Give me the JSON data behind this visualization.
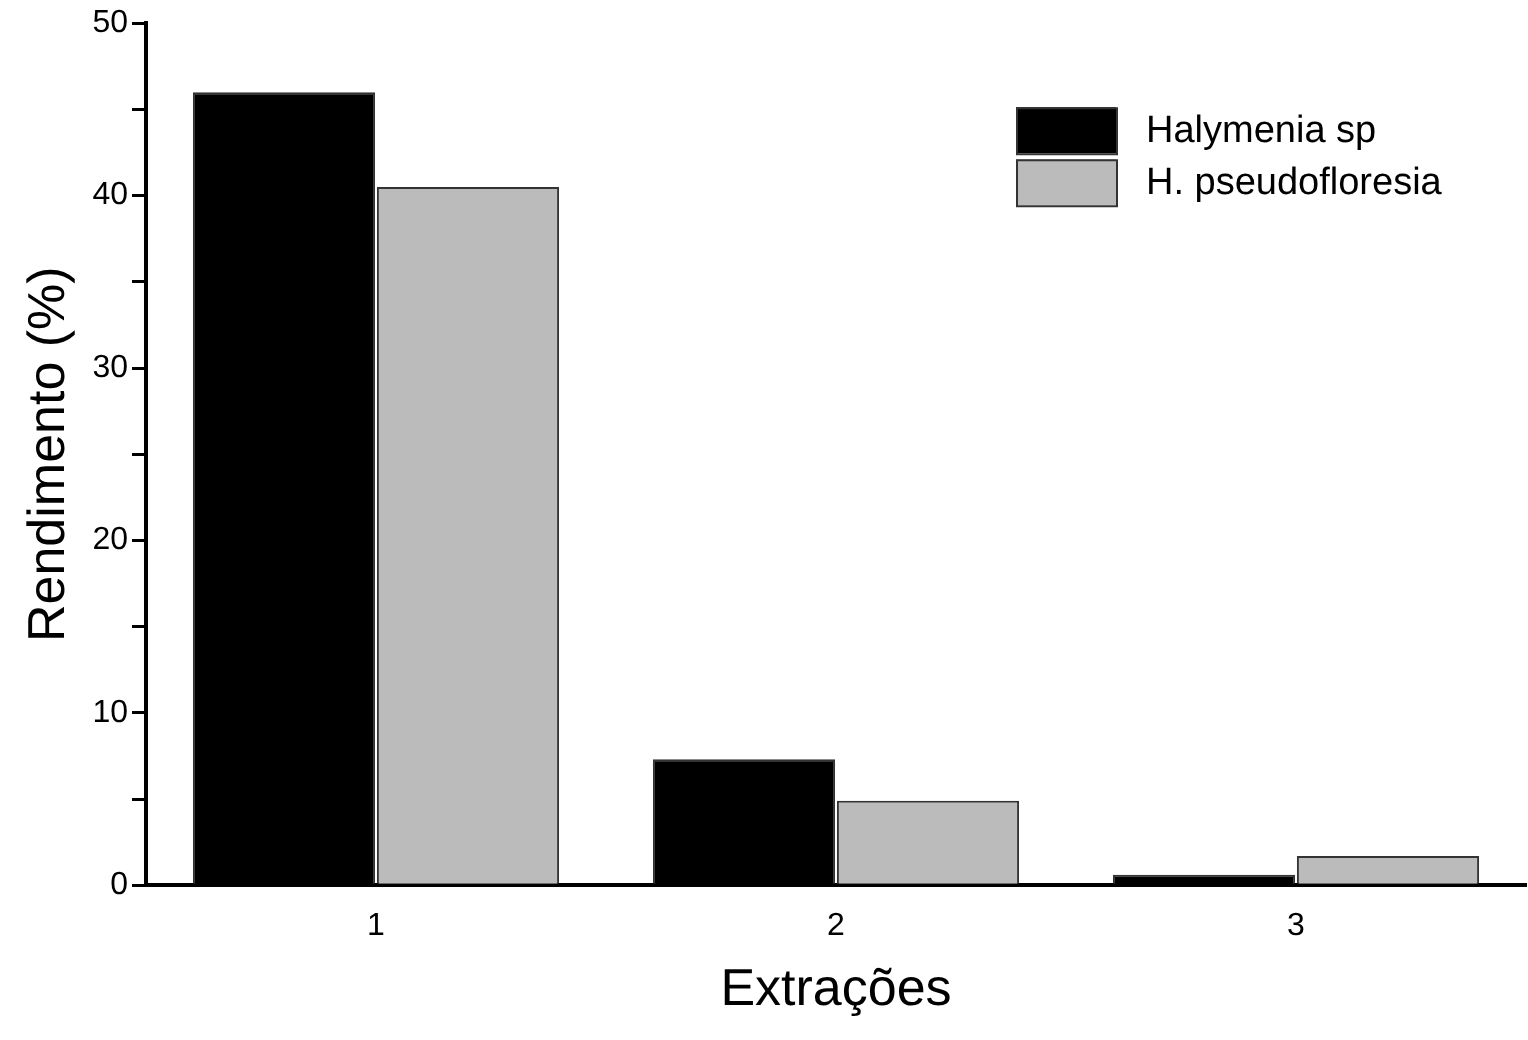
{
  "chart_data": {
    "type": "bar",
    "xlabel": "Extrações",
    "ylabel": "Rendimento (%)",
    "categories": [
      "1",
      "2",
      "3"
    ],
    "series": [
      {
        "name": "Halymenia sp",
        "color": "#000000",
        "values": [
          46,
          7.3,
          0.6
        ]
      },
      {
        "name": "H. pseudofloresia",
        "color": "#bbbbbb",
        "values": [
          40.5,
          4.9,
          1.7
        ]
      }
    ],
    "ylim": [
      0,
      50
    ],
    "yticks": [
      0,
      {
        "value": 5,
        "label": null
      },
      10,
      {
        "value": 15,
        "label": null
      },
      20,
      {
        "value": 25,
        "label": null
      },
      30,
      {
        "value": 35,
        "label": null
      },
      40,
      {
        "value": 45,
        "label": null
      },
      50
    ],
    "grid": false,
    "legend": "top right"
  }
}
